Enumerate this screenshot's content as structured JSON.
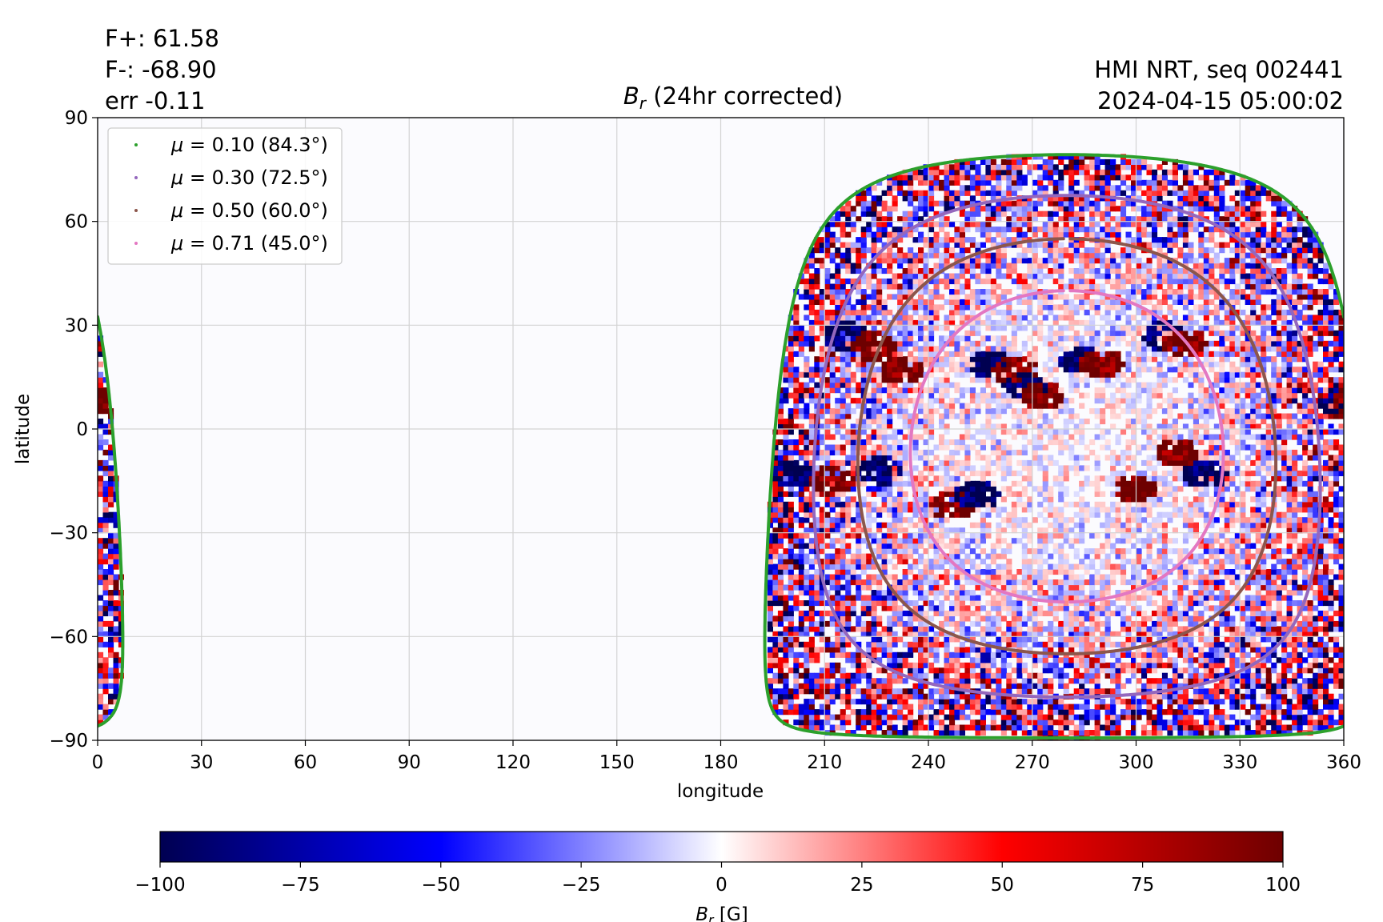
{
  "header": {
    "stats": [
      "F+: 61.58",
      "F-: -68.90",
      "err -0.11"
    ],
    "source": "HMI NRT, seq 002441",
    "datetime": "2024-04-15 05:00:02"
  },
  "colors": {
    "negative": "#000051",
    "mid_negative": "#0000ff",
    "zero": "#ffffff",
    "mid_positive": "#ff0000",
    "positive": "#6e0000",
    "background": "#fbfbfe",
    "grid": "#d0d0d0"
  },
  "chart_data": {
    "type": "heatmap",
    "title_main": "B",
    "title_sub": "r",
    "title_rest": " (24hr corrected)",
    "xlabel": "longitude",
    "ylabel": "latitude",
    "xlim": [
      0,
      360
    ],
    "ylim": [
      -90,
      90
    ],
    "xticks": [
      "0",
      "30",
      "60",
      "90",
      "120",
      "150",
      "180",
      "210",
      "240",
      "270",
      "300",
      "330",
      "360"
    ],
    "yticks": [
      "90",
      "60",
      "30",
      "0",
      "−30",
      "−60",
      "−90"
    ],
    "grid": true,
    "legend_position": "upper-left",
    "disk_center": {
      "lon": 280,
      "lat": -5
    },
    "series": [
      {
        "label_mu": "0.10",
        "label_angle": " (84.3°)",
        "angle_deg": 84.3,
        "color": "#2ca02c"
      },
      {
        "label_mu": "0.30",
        "label_angle": " (72.5°)",
        "angle_deg": 72.5,
        "color": "#9467bd"
      },
      {
        "label_mu": "0.50",
        "label_angle": " (60.0°)",
        "angle_deg": 60.0,
        "color": "#8c564b"
      },
      {
        "label_mu": "0.71",
        "label_angle": " (45.0°)",
        "angle_deg": 45.0,
        "color": "#e377c2"
      }
    ],
    "active_regions": [
      {
        "lon": 216,
        "lat": 27,
        "sign": -1
      },
      {
        "lon": 224,
        "lat": 24,
        "sign": 1
      },
      {
        "lon": 232,
        "lat": 17,
        "sign": 1
      },
      {
        "lon": 258,
        "lat": 19,
        "sign": -1
      },
      {
        "lon": 265,
        "lat": 17,
        "sign": 1
      },
      {
        "lon": 284,
        "lat": 20,
        "sign": -1
      },
      {
        "lon": 290,
        "lat": 19,
        "sign": 1
      },
      {
        "lon": 268,
        "lat": 12,
        "sign": -1
      },
      {
        "lon": 273,
        "lat": 10,
        "sign": 1
      },
      {
        "lon": 308,
        "lat": 27,
        "sign": -1
      },
      {
        "lon": 314,
        "lat": 25,
        "sign": 1
      },
      {
        "lon": 201,
        "lat": -13,
        "sign": -1
      },
      {
        "lon": 212,
        "lat": -15,
        "sign": 1
      },
      {
        "lon": 226,
        "lat": -12,
        "sign": -1
      },
      {
        "lon": 247,
        "lat": -22,
        "sign": 1
      },
      {
        "lon": 254,
        "lat": -19,
        "sign": -1
      },
      {
        "lon": 312,
        "lat": -7,
        "sign": 1
      },
      {
        "lon": 300,
        "lat": -17,
        "sign": 1
      },
      {
        "lon": 320,
        "lat": -13,
        "sign": -1
      },
      {
        "lon": 359,
        "lat": 8,
        "sign": -1
      },
      {
        "lon": 3,
        "lat": 8,
        "sign": 1
      }
    ],
    "colorbar": {
      "label_main": "B",
      "label_sub": "r",
      "label_unit": " [G]",
      "range": [
        -100,
        100
      ],
      "ticks": [
        "−100",
        "−75",
        "−50",
        "−25",
        "0",
        "25",
        "50",
        "75",
        "100"
      ]
    }
  }
}
